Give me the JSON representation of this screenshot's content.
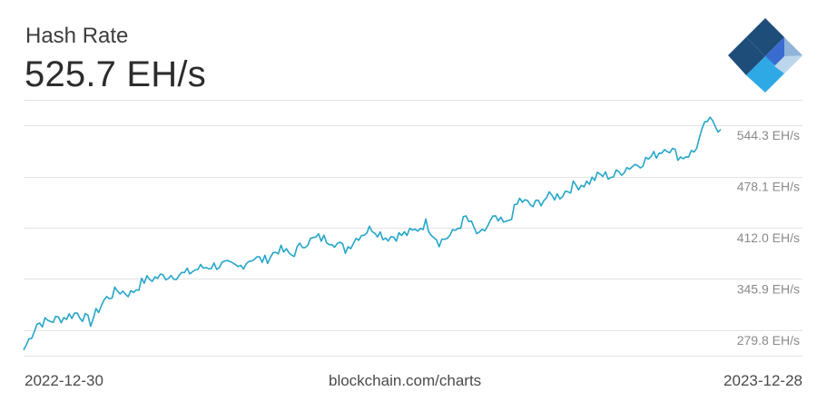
{
  "header": {
    "title": "Hash Rate",
    "current_value": "525.7 EH/s"
  },
  "footer": {
    "start_date": "2022-12-30",
    "source": "blockchain.com/charts",
    "end_date": "2023-12-28"
  },
  "logo": {
    "icon": "blockchain-logo-icon",
    "colors": [
      "#1f4d7a",
      "#3a6bd1",
      "#2fa8e6",
      "#8fb3d9",
      "#bcd6ec"
    ]
  },
  "colors": {
    "line": "#25a6c8",
    "grid": "#e3e3e3",
    "tick_text": "#8a8a8a"
  },
  "chart_data": {
    "type": "line",
    "title": "Hash Rate",
    "x_range": [
      "2022-12-30",
      "2023-12-28"
    ],
    "y_ticks": [
      {
        "value": 279.8,
        "label": "279.8 EH/s"
      },
      {
        "value": 345.9,
        "label": "345.9 EH/s"
      },
      {
        "value": 412.0,
        "label": "412.0 EH/s"
      },
      {
        "value": 478.1,
        "label": "478.1 EH/s"
      },
      {
        "value": 544.3,
        "label": "544.3 EH/s"
      }
    ],
    "ylim": [
      246.7,
      577.4
    ],
    "grid": true,
    "series": [
      {
        "x": [
          "2022-12-30",
          "2023-01-05",
          "2023-01-12",
          "2023-01-19",
          "2023-01-26",
          "2023-02-02",
          "2023-02-09",
          "2023-02-16",
          "2023-02-23",
          "2023-03-02",
          "2023-03-09",
          "2023-03-16",
          "2023-03-23",
          "2023-03-30",
          "2023-04-06",
          "2023-04-13",
          "2023-04-20",
          "2023-04-27",
          "2023-05-04",
          "2023-05-11",
          "2023-05-18",
          "2023-05-25",
          "2023-06-01",
          "2023-06-08",
          "2023-06-15",
          "2023-06-22",
          "2023-06-29",
          "2023-07-06",
          "2023-07-13",
          "2023-07-20",
          "2023-07-27",
          "2023-08-03",
          "2023-08-10",
          "2023-08-17",
          "2023-08-24",
          "2023-08-31",
          "2023-09-07",
          "2023-09-14",
          "2023-09-21",
          "2023-09-28",
          "2023-10-05",
          "2023-10-12",
          "2023-10-19",
          "2023-10-26",
          "2023-11-02",
          "2023-11-09",
          "2023-11-16",
          "2023-11-23",
          "2023-11-30",
          "2023-12-07",
          "2023-12-14",
          "2023-12-21",
          "2023-12-28"
        ],
        "values": [
          254,
          288,
          292,
          296,
          302,
          290,
          318,
          331,
          327,
          344,
          348,
          351,
          352,
          359,
          363,
          364,
          360,
          373,
          370,
          384,
          377,
          393,
          399,
          396,
          384,
          402,
          412,
          400,
          402,
          406,
          418,
          394,
          404,
          425,
          400,
          423,
          416,
          448,
          440,
          451,
          454,
          466,
          470,
          480,
          479,
          490,
          496,
          505,
          517,
          503,
          510,
          551,
          539
        ]
      }
    ]
  }
}
